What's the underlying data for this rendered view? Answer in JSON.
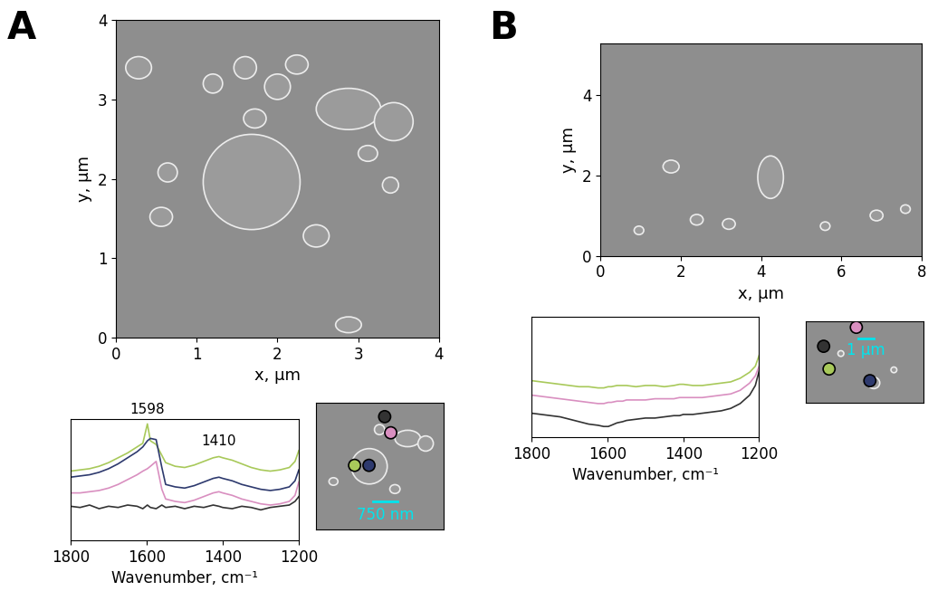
{
  "chart_data": [
    {
      "type": "image",
      "title": "A",
      "xlabel": "x, µm",
      "ylabel": "y, µm",
      "xlim": [
        0,
        4
      ],
      "ylim": [
        0,
        4
      ],
      "xticks": [
        0,
        1,
        2,
        3,
        4
      ],
      "yticks": [
        0,
        1,
        2,
        3,
        4
      ]
    },
    {
      "type": "line",
      "xlabel": "Wavenumber, cm⁻¹",
      "tick_labels": "x",
      "xlim": [
        1800,
        1200
      ],
      "ylim": [
        0,
        10
      ],
      "xticks": [
        1800,
        1600,
        1400,
        1200
      ],
      "x": [
        1800,
        1775,
        1750,
        1725,
        1700,
        1675,
        1650,
        1625,
        1610,
        1598,
        1590,
        1575,
        1560,
        1550,
        1525,
        1500,
        1475,
        1450,
        1425,
        1410,
        1400,
        1375,
        1350,
        1325,
        1300,
        1275,
        1250,
        1225,
        1210,
        1200
      ],
      "series": [
        {
          "color": "#a8c95a",
          "values": [
            5.7,
            5.8,
            5.9,
            6.1,
            6.4,
            6.8,
            7.2,
            7.7,
            8.0,
            9.6,
            8.2,
            7.9,
            7.0,
            6.4,
            6.1,
            6.0,
            6.2,
            6.5,
            6.8,
            6.9,
            6.8,
            6.6,
            6.3,
            6.0,
            5.8,
            5.7,
            5.8,
            6.0,
            6.5,
            7.4
          ]
        },
        {
          "color": "#2e3a6e",
          "values": [
            5.2,
            5.3,
            5.4,
            5.6,
            5.9,
            6.3,
            6.8,
            7.3,
            7.7,
            8.2,
            8.4,
            8.3,
            6.0,
            4.6,
            4.4,
            4.3,
            4.5,
            4.8,
            5.1,
            5.2,
            5.1,
            4.9,
            4.6,
            4.4,
            4.2,
            4.1,
            4.2,
            4.4,
            4.9,
            5.8
          ]
        },
        {
          "color": "#d98fc0",
          "values": [
            3.9,
            3.9,
            4.0,
            4.1,
            4.3,
            4.6,
            5.0,
            5.4,
            5.7,
            5.9,
            6.1,
            6.5,
            4.2,
            3.4,
            3.2,
            3.1,
            3.3,
            3.6,
            3.9,
            4.0,
            3.9,
            3.7,
            3.4,
            3.2,
            3.0,
            2.9,
            3.0,
            3.2,
            3.7,
            4.8
          ]
        },
        {
          "color": "#333333",
          "values": [
            2.8,
            2.7,
            2.9,
            2.6,
            2.8,
            2.7,
            2.9,
            2.8,
            2.6,
            2.9,
            2.7,
            2.6,
            2.9,
            2.7,
            2.8,
            2.6,
            2.8,
            2.7,
            2.9,
            2.8,
            2.7,
            2.6,
            2.8,
            2.7,
            2.5,
            2.7,
            2.8,
            2.9,
            3.2,
            3.6
          ]
        }
      ],
      "annotations": [
        {
          "text": "1598",
          "x": 1598,
          "y": 10.2
        },
        {
          "text": "1410",
          "x": 1410,
          "y": 7.6
        }
      ]
    },
    {
      "type": "image",
      "tick_labels": false,
      "xlim": [
        0,
        4
      ],
      "ylim": [
        0,
        4
      ],
      "points": {
        "x": [
          1.22,
          1.67,
          2.16,
          2.35
        ],
        "y": [
          2.03,
          2.03,
          3.57,
          3.06
        ],
        "colors": [
          "#a8c95a",
          "#2e3a6e",
          "#333333",
          "#d98fc0"
        ]
      },
      "scale_bar": {
        "length": 0.75,
        "label": "750 nm",
        "color": "#00e5ee"
      }
    },
    {
      "type": "image",
      "title": "B",
      "xlabel": "x, µm",
      "ylabel": "y, µm",
      "xlim": [
        0,
        8
      ],
      "ylim": [
        0,
        5.3
      ],
      "xticks": [
        0,
        2,
        4,
        6,
        8
      ],
      "yticks": [
        0,
        2,
        4
      ]
    },
    {
      "type": "line",
      "xlabel": "Wavenumber, cm⁻¹",
      "tick_labels": "x",
      "xlim": [
        1800,
        1200
      ],
      "ylim": [
        0,
        10
      ],
      "xticks": [
        1800,
        1600,
        1400,
        1200
      ],
      "x": [
        1800,
        1775,
        1750,
        1725,
        1700,
        1675,
        1650,
        1625,
        1610,
        1598,
        1590,
        1575,
        1560,
        1550,
        1525,
        1500,
        1475,
        1450,
        1425,
        1410,
        1400,
        1375,
        1350,
        1325,
        1300,
        1275,
        1250,
        1225,
        1210,
        1200
      ],
      "series": [
        {
          "color": "#a8c95a",
          "values": [
            4.7,
            4.6,
            4.5,
            4.4,
            4.3,
            4.2,
            4.2,
            4.1,
            4.1,
            4.2,
            4.2,
            4.3,
            4.3,
            4.3,
            4.2,
            4.3,
            4.3,
            4.2,
            4.3,
            4.4,
            4.4,
            4.3,
            4.3,
            4.4,
            4.5,
            4.6,
            4.9,
            5.4,
            5.9,
            6.8
          ]
        },
        {
          "color": "#d98fc0",
          "values": [
            3.5,
            3.4,
            3.3,
            3.2,
            3.1,
            3.0,
            2.9,
            2.8,
            2.8,
            2.9,
            2.9,
            3.0,
            3.0,
            3.1,
            3.1,
            3.1,
            3.2,
            3.2,
            3.2,
            3.3,
            3.3,
            3.3,
            3.3,
            3.4,
            3.5,
            3.6,
            3.9,
            4.5,
            5.1,
            5.9
          ]
        },
        {
          "color": "#333333",
          "values": [
            2.0,
            1.9,
            1.8,
            1.7,
            1.5,
            1.3,
            1.1,
            1.0,
            0.9,
            0.9,
            1.0,
            1.2,
            1.3,
            1.4,
            1.5,
            1.6,
            1.6,
            1.7,
            1.8,
            1.8,
            1.9,
            1.9,
            2.0,
            2.1,
            2.2,
            2.4,
            2.8,
            3.5,
            4.3,
            5.5
          ]
        }
      ]
    },
    {
      "type": "image",
      "tick_labels": false,
      "xlim": [
        0,
        8
      ],
      "ylim": [
        0,
        5.5
      ],
      "points": {
        "x": [
          3.45,
          1.23,
          1.6,
          4.37
        ],
        "y": [
          5.07,
          3.79,
          2.26,
          1.47
        ],
        "colors": [
          "#d98fc0",
          "#333333",
          "#a8c95a",
          "#2e3a6e"
        ]
      },
      "scale_bar": {
        "length": 1,
        "label": "1 µm",
        "color": "#00e5ee"
      }
    }
  ]
}
